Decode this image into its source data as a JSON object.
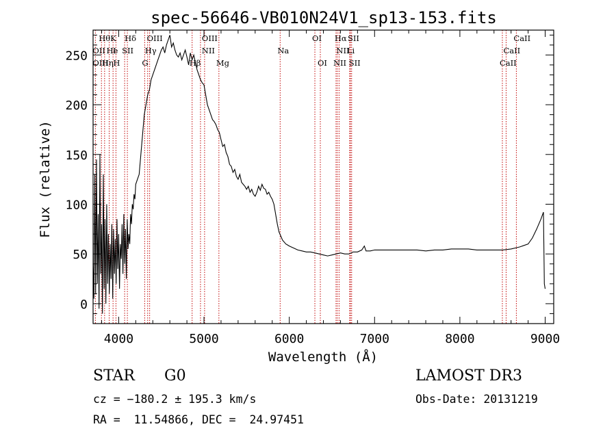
{
  "chart_data": {
    "type": "line",
    "title": "spec-56646-VB010N24V1_sp13-153.fits",
    "xlabel": "Wavelength (Å)",
    "ylabel": "Flux (relative)",
    "xlim": [
      3700,
      9100
    ],
    "ylim": [
      -20,
      275
    ],
    "xticks": [
      4000,
      5000,
      6000,
      7000,
      8000,
      9000
    ],
    "yticks": [
      0,
      50,
      100,
      150,
      200,
      250
    ],
    "series": [
      {
        "name": "flux",
        "x": [
          3700,
          3710,
          3720,
          3730,
          3740,
          3750,
          3760,
          3770,
          3780,
          3790,
          3800,
          3810,
          3820,
          3830,
          3840,
          3850,
          3860,
          3870,
          3880,
          3890,
          3900,
          3910,
          3920,
          3930,
          3940,
          3950,
          3960,
          3970,
          3980,
          3990,
          4000,
          4010,
          4020,
          4030,
          4040,
          4050,
          4060,
          4070,
          4080,
          4090,
          4100,
          4110,
          4120,
          4130,
          4140,
          4150,
          4160,
          4170,
          4180,
          4190,
          4200,
          4220,
          4240,
          4260,
          4280,
          4300,
          4320,
          4340,
          4360,
          4380,
          4400,
          4420,
          4440,
          4460,
          4480,
          4500,
          4520,
          4540,
          4560,
          4580,
          4600,
          4620,
          4640,
          4660,
          4680,
          4700,
          4720,
          4740,
          4760,
          4780,
          4800,
          4820,
          4840,
          4860,
          4880,
          4900,
          4920,
          4940,
          4960,
          4980,
          5000,
          5020,
          5040,
          5060,
          5080,
          5100,
          5120,
          5140,
          5160,
          5180,
          5200,
          5220,
          5240,
          5260,
          5280,
          5300,
          5320,
          5340,
          5360,
          5380,
          5400,
          5420,
          5440,
          5460,
          5480,
          5500,
          5520,
          5540,
          5560,
          5580,
          5600,
          5620,
          5640,
          5660,
          5680,
          5700,
          5720,
          5740,
          5760,
          5780,
          5800,
          5820,
          5840,
          5860,
          5880,
          5900,
          5920,
          5940,
          5960,
          5980,
          6000,
          6050,
          6100,
          6150,
          6200,
          6250,
          6300,
          6350,
          6400,
          6450,
          6500,
          6550,
          6600,
          6650,
          6700,
          6750,
          6800,
          6850,
          6880,
          6900,
          6950,
          7000,
          7100,
          7200,
          7300,
          7400,
          7500,
          7600,
          7700,
          7800,
          7900,
          8000,
          8100,
          8200,
          8300,
          8400,
          8500,
          8600,
          8700,
          8800,
          8850,
          8900,
          8950,
          8980,
          8990,
          9000
        ],
        "values": [
          40,
          5,
          130,
          10,
          145,
          20,
          90,
          -5,
          150,
          30,
          80,
          -10,
          130,
          15,
          85,
          0,
          100,
          20,
          70,
          10,
          60,
          25,
          80,
          5,
          75,
          30,
          65,
          20,
          85,
          35,
          70,
          15,
          60,
          45,
          80,
          30,
          90,
          40,
          75,
          25,
          85,
          55,
          70,
          60,
          90,
          80,
          100,
          95,
          110,
          105,
          120,
          125,
          130,
          150,
          170,
          190,
          200,
          210,
          215,
          225,
          230,
          235,
          240,
          245,
          250,
          255,
          258,
          252,
          260,
          265,
          270,
          258,
          262,
          255,
          250,
          248,
          252,
          245,
          250,
          255,
          248,
          240,
          252,
          245,
          250,
          242,
          235,
          230,
          225,
          222,
          220,
          210,
          200,
          195,
          190,
          185,
          183,
          180,
          175,
          172,
          165,
          158,
          160,
          152,
          148,
          140,
          138,
          132,
          135,
          128,
          125,
          130,
          122,
          120,
          118,
          115,
          118,
          112,
          115,
          110,
          108,
          112,
          118,
          114,
          120,
          116,
          115,
          110,
          112,
          108,
          105,
          100,
          90,
          80,
          72,
          68,
          64,
          62,
          60,
          59,
          58,
          56,
          54,
          53,
          52,
          52,
          51,
          50,
          49,
          48,
          49,
          50,
          51,
          50,
          50,
          52,
          52,
          54,
          58,
          53,
          53,
          54,
          54,
          54,
          54,
          54,
          54,
          53,
          54,
          54,
          55,
          55,
          55,
          54,
          54,
          54,
          54,
          55,
          57,
          60,
          66,
          75,
          85,
          92,
          20,
          15
        ]
      }
    ],
    "spectral_lines": [
      {
        "label": "Hθ",
        "wave": 3798,
        "row": 0
      },
      {
        "label": "K",
        "wave": 3934,
        "row": 0
      },
      {
        "label": "Hδ",
        "wave": 4102,
        "row": 0
      },
      {
        "label": "OIII",
        "wave": 4363,
        "row": 0
      },
      {
        "label": "OIII",
        "wave": 5007,
        "row": 0
      },
      {
        "label": "OI",
        "wave": 6300,
        "row": 0
      },
      {
        "label": "Hα",
        "wave": 6563,
        "row": 0
      },
      {
        "label": "SII",
        "wave": 6717,
        "row": 0
      },
      {
        "label": "CaII",
        "wave": 8662,
        "row": 0
      },
      {
        "label": "OII",
        "wave": 3727,
        "row": 1
      },
      {
        "label": "He",
        "wave": 3889,
        "row": 1
      },
      {
        "label": "I",
        "wave": 3965,
        "row": 1
      },
      {
        "label": "SII",
        "wave": 4070,
        "row": 1
      },
      {
        "label": "Hγ",
        "wave": 4340,
        "row": 1
      },
      {
        "label": "NII",
        "wave": 5006,
        "row": 1
      },
      {
        "label": "Na",
        "wave": 5893,
        "row": 1
      },
      {
        "label": "NII",
        "wave": 6584,
        "row": 1
      },
      {
        "label": "Li",
        "wave": 6708,
        "row": 1
      },
      {
        "label": "CaII",
        "wave": 8542,
        "row": 1
      },
      {
        "label": "OIII",
        "wave": 3727,
        "row": 2
      },
      {
        "label": "Hη",
        "wave": 3835,
        "row": 2
      },
      {
        "label": "H",
        "wave": 3968,
        "row": 2
      },
      {
        "label": "G",
        "wave": 4305,
        "row": 2
      },
      {
        "label": "Hβ",
        "wave": 4861,
        "row": 2
      },
      {
        "label": "Mg",
        "wave": 5175,
        "row": 2
      },
      {
        "label": "OI",
        "wave": 6364,
        "row": 2
      },
      {
        "label": "NII",
        "wave": 6548,
        "row": 2
      },
      {
        "label": "SII",
        "wave": 6731,
        "row": 2
      },
      {
        "label": "CaII",
        "wave": 8498,
        "row": 2
      }
    ],
    "line_waves": [
      3727,
      3798,
      3835,
      3889,
      3934,
      3968,
      4070,
      4102,
      4305,
      4340,
      4363,
      4861,
      4959,
      5007,
      5175,
      5893,
      6300,
      6364,
      6548,
      6563,
      6584,
      6708,
      6717,
      6731,
      8498,
      8542,
      8662
    ]
  },
  "info": {
    "object_class": "STAR",
    "subclass": "G0",
    "survey": "LAMOST DR3",
    "redshift": "cz = −180.2 ± 195.3 km/s",
    "obs_date": "Obs-Date: 20131219",
    "coords": "RA =  11.54866, DEC =  24.97451"
  },
  "colors": {
    "line_marker": "#c00000",
    "spectrum": "#000000"
  }
}
